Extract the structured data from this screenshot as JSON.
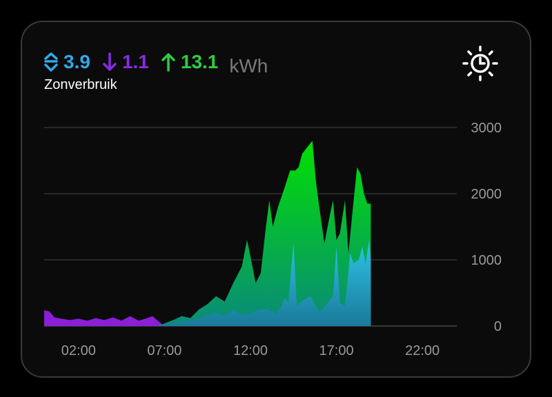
{
  "header": {
    "stats": [
      {
        "value": "3.9",
        "color": "#2fa8e8",
        "icon": "updown-chevrons-icon"
      },
      {
        "value": "1.1",
        "color": "#8a2be2",
        "icon": "arrow-down-icon"
      },
      {
        "value": "13.1",
        "color": "#2ecc40",
        "icon": "arrow-up-icon"
      }
    ],
    "unit": "kWh",
    "subtitle": "Zonverbruik",
    "icon": "solar-clock-icon"
  },
  "chart_data": {
    "type": "area",
    "xlabel": "",
    "ylabel": "",
    "ylim": [
      0,
      3000
    ],
    "yticks": [
      "0",
      "1000",
      "2000",
      "3000"
    ],
    "xticks": [
      "02:00",
      "07:00",
      "12:00",
      "17:00",
      "22:00"
    ],
    "xtick_hours": [
      2,
      7,
      12,
      17,
      22
    ],
    "xlim_hours": [
      0,
      24
    ],
    "grid": true,
    "series": [
      {
        "color": "#8a1fd6",
        "points": [
          [
            0,
            240
          ],
          [
            0.3,
            220
          ],
          [
            0.6,
            130
          ],
          [
            1,
            110
          ],
          [
            1.5,
            90
          ],
          [
            2,
            110
          ],
          [
            2.5,
            80
          ],
          [
            3,
            120
          ],
          [
            3.5,
            90
          ],
          [
            4,
            130
          ],
          [
            4.5,
            80
          ],
          [
            5,
            150
          ],
          [
            5.5,
            80
          ],
          [
            6,
            120
          ],
          [
            6.3,
            150
          ],
          [
            6.6,
            80
          ],
          [
            7,
            0
          ]
        ]
      },
      {
        "color": "#00e000",
        "gradient_to": "#0a8a7a",
        "points": [
          [
            6.6,
            0
          ],
          [
            7,
            40
          ],
          [
            7.5,
            90
          ],
          [
            8,
            150
          ],
          [
            8.5,
            120
          ],
          [
            9,
            250
          ],
          [
            9.5,
            330
          ],
          [
            10,
            450
          ],
          [
            10.5,
            370
          ],
          [
            11,
            650
          ],
          [
            11.5,
            900
          ],
          [
            11.8,
            1300
          ],
          [
            12,
            1050
          ],
          [
            12.3,
            650
          ],
          [
            12.6,
            800
          ],
          [
            12.9,
            1500
          ],
          [
            13.1,
            1900
          ],
          [
            13.3,
            1500
          ],
          [
            13.6,
            1800
          ],
          [
            14,
            2100
          ],
          [
            14.3,
            2350
          ],
          [
            14.6,
            2350
          ],
          [
            14.8,
            2400
          ],
          [
            15,
            2600
          ],
          [
            15.3,
            2700
          ],
          [
            15.6,
            2800
          ],
          [
            15.8,
            2200
          ],
          [
            16,
            1800
          ],
          [
            16.3,
            1250
          ],
          [
            16.6,
            1650
          ],
          [
            16.8,
            1900
          ],
          [
            17,
            1300
          ],
          [
            17.2,
            1400
          ],
          [
            17.5,
            1900
          ],
          [
            17.7,
            1100
          ],
          [
            18,
            1900
          ],
          [
            18.2,
            2400
          ],
          [
            18.4,
            2300
          ],
          [
            18.6,
            2000
          ],
          [
            18.8,
            1850
          ],
          [
            19,
            1850
          ],
          [
            19,
            0
          ]
        ]
      },
      {
        "color": "#2ec4e8",
        "gradient_to": "#1a7a9a",
        "points": [
          [
            6.6,
            0
          ],
          [
            7,
            20
          ],
          [
            8,
            60
          ],
          [
            9,
            110
          ],
          [
            9.5,
            160
          ],
          [
            10,
            200
          ],
          [
            10.5,
            150
          ],
          [
            11,
            240
          ],
          [
            11.5,
            170
          ],
          [
            12,
            180
          ],
          [
            12.5,
            250
          ],
          [
            13,
            250
          ],
          [
            13.5,
            180
          ],
          [
            13.8,
            300
          ],
          [
            14,
            420
          ],
          [
            14.2,
            350
          ],
          [
            14.5,
            1250
          ],
          [
            14.7,
            300
          ],
          [
            15,
            380
          ],
          [
            15.5,
            450
          ],
          [
            15.8,
            300
          ],
          [
            16,
            200
          ],
          [
            16.5,
            350
          ],
          [
            16.8,
            450
          ],
          [
            17,
            1200
          ],
          [
            17.2,
            350
          ],
          [
            17.5,
            300
          ],
          [
            17.8,
            1100
          ],
          [
            18,
            950
          ],
          [
            18.3,
            1000
          ],
          [
            18.5,
            1200
          ],
          [
            18.7,
            950
          ],
          [
            18.9,
            1300
          ],
          [
            19,
            1000
          ],
          [
            19,
            0
          ]
        ]
      }
    ]
  }
}
